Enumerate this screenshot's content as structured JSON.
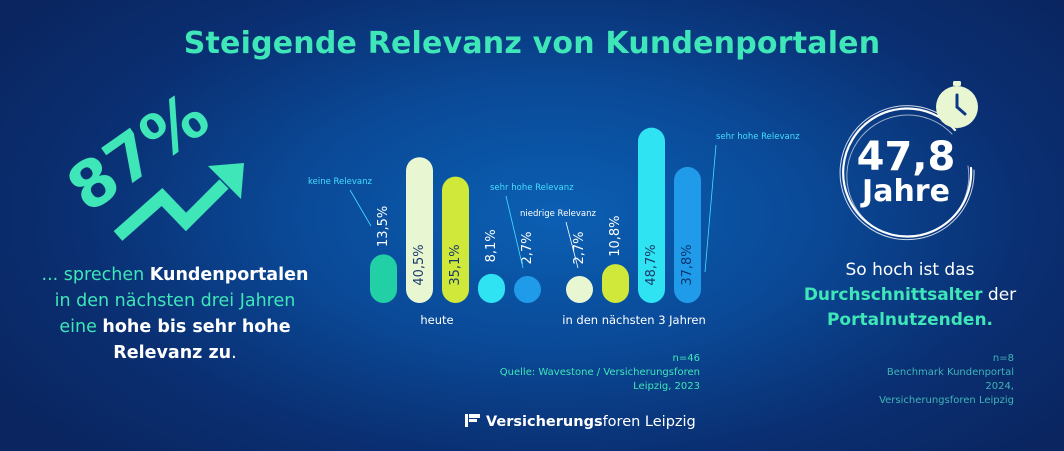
{
  "title": "Steigende Relevanz von Kundenportalen",
  "left": {
    "big_number": "87%",
    "line1_a": "... sprechen ",
    "line1_b": "Kundenportalen",
    "line2": "in den nächsten drei Jahren",
    "line3_a": "eine ",
    "line3_b": "hohe bis sehr hohe",
    "line4_a": "Relevanz  zu",
    "line4_b": ".",
    "arrow_icon": "trend-up-arrow-icon"
  },
  "right": {
    "age_value": "47,8",
    "age_unit": "Jahre",
    "clock_icon": "clock-icon",
    "line1": "So hoch ist das",
    "line2_a": "Durchschnittsalter",
    "line2_b": " der",
    "line3": "Portalnutzenden.",
    "note_n": "n=8",
    "note_src1": "Benchmark Kundenportal 2024,",
    "note_src2": "Versicherungsforen Leipzig"
  },
  "source": {
    "n": "n=46",
    "text": "Quelle: Wavestone / Versicherungsforen Leipzig, 2023"
  },
  "logo": {
    "bold": "Versicherungs",
    "regular": "foren Leipzig",
    "icon": "logo-mark-icon"
  },
  "colors": {
    "accent": "#3ee6b8",
    "bg": "#0a4a98",
    "teal": "#22d0a6",
    "pale": "#e9f6d2",
    "lime": "#cfe83a",
    "cyan": "#2fe3f2",
    "blue": "#1f9bea",
    "annotation": "#45dfff"
  },
  "chart_data": {
    "type": "bar",
    "categories": [
      "heute",
      "in den nächsten 3 Jahren"
    ],
    "annotations": [
      "keine Relevanz",
      "niedrige Relevanz",
      "sehr hohe Relevanz"
    ],
    "series": [
      {
        "name": "keine Relevanz",
        "color": "#22d0a6",
        "values": [
          13.5,
          null
        ]
      },
      {
        "name": "",
        "color": "#e9f6d2",
        "values": [
          40.5,
          2.7
        ]
      },
      {
        "name": "",
        "color": "#cfe83a",
        "values": [
          35.1,
          10.8
        ]
      },
      {
        "name": "",
        "color": "#2fe3f2",
        "values": [
          8.1,
          48.7
        ]
      },
      {
        "name": "sehr hohe Relevanz",
        "color": "#1f9bea",
        "values": [
          2.7,
          37.8
        ]
      }
    ],
    "bars": [
      {
        "group": 0,
        "value": 13.5,
        "label": "13,5%",
        "color": "#22d0a6"
      },
      {
        "group": 0,
        "value": 40.5,
        "label": "40,5%",
        "color": "#e9f6d2"
      },
      {
        "group": 0,
        "value": 35.1,
        "label": "35,1%",
        "color": "#cfe83a"
      },
      {
        "group": 0,
        "value": 8.1,
        "label": "8,1%",
        "color": "#2fe3f2"
      },
      {
        "group": 0,
        "value": 2.7,
        "label": "2,7%",
        "color": "#1f9bea"
      },
      {
        "group": 1,
        "value": 2.7,
        "label": "2,7%",
        "color": "#e9f6d2"
      },
      {
        "group": 1,
        "value": 10.8,
        "label": "10,8%",
        "color": "#cfe83a"
      },
      {
        "group": 1,
        "value": 48.7,
        "label": "48,7%",
        "color": "#2fe3f2"
      },
      {
        "group": 1,
        "value": 37.8,
        "label": "37,8%",
        "color": "#1f9bea"
      }
    ],
    "ylim": [
      0,
      50
    ],
    "grid": false,
    "axis_labels_visible": false
  }
}
